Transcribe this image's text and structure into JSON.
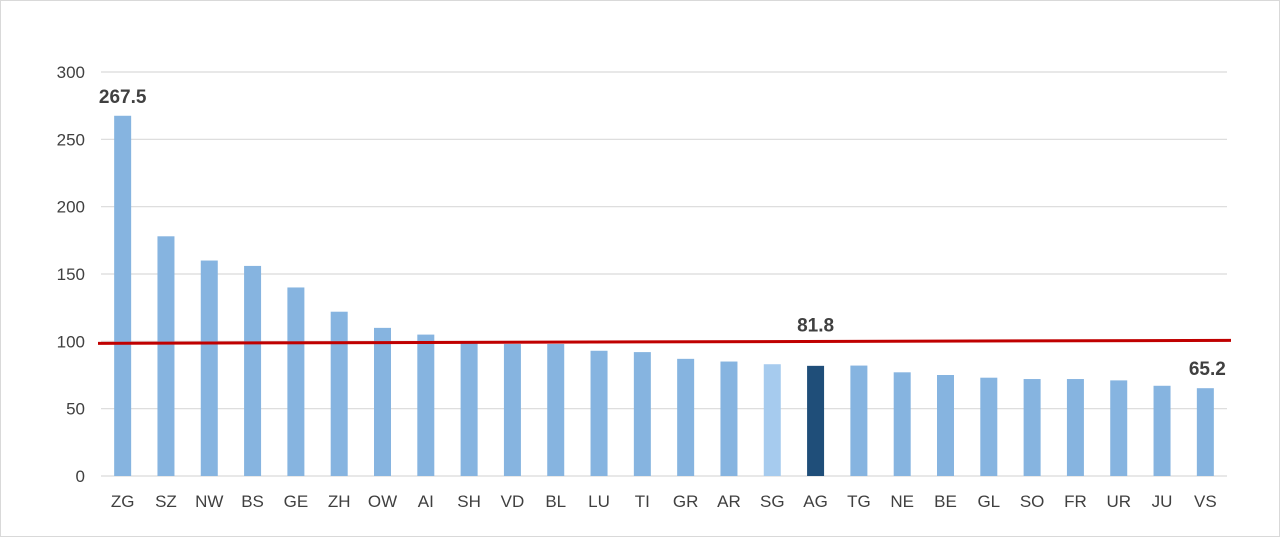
{
  "chart_data": {
    "type": "bar",
    "categories": [
      "ZG",
      "SZ",
      "NW",
      "BS",
      "GE",
      "ZH",
      "OW",
      "AI",
      "SH",
      "VD",
      "BL",
      "LU",
      "TI",
      "GR",
      "AR",
      "SG",
      "AG",
      "TG",
      "NE",
      "BE",
      "GL",
      "SO",
      "FR",
      "UR",
      "JU",
      "VS"
    ],
    "values": [
      267.5,
      178,
      160,
      156,
      140,
      122,
      110,
      105,
      99,
      98,
      98,
      93,
      92,
      87,
      85,
      83,
      81.8,
      82,
      77,
      75,
      73,
      72,
      72,
      71,
      67,
      65.2
    ],
    "ylim": [
      0,
      300
    ],
    "yticks": [
      0,
      50,
      100,
      150,
      200,
      250,
      300
    ],
    "grid": true,
    "reference_line": {
      "value": 100,
      "color": "#c00000"
    },
    "data_labels": [
      {
        "category": "ZG",
        "text": "267.5"
      },
      {
        "category": "AG",
        "text": "81.8"
      },
      {
        "category": "VS",
        "text": "65.2"
      }
    ],
    "colors": {
      "default": "#86b4e0",
      "highlight_SG": "#a6cbee",
      "highlight_AG": "#1f4e79",
      "grid": "#d9d9d9"
    },
    "bar_color_overrides": {
      "SG": "#a6cbee",
      "AG": "#1f4e79"
    }
  }
}
